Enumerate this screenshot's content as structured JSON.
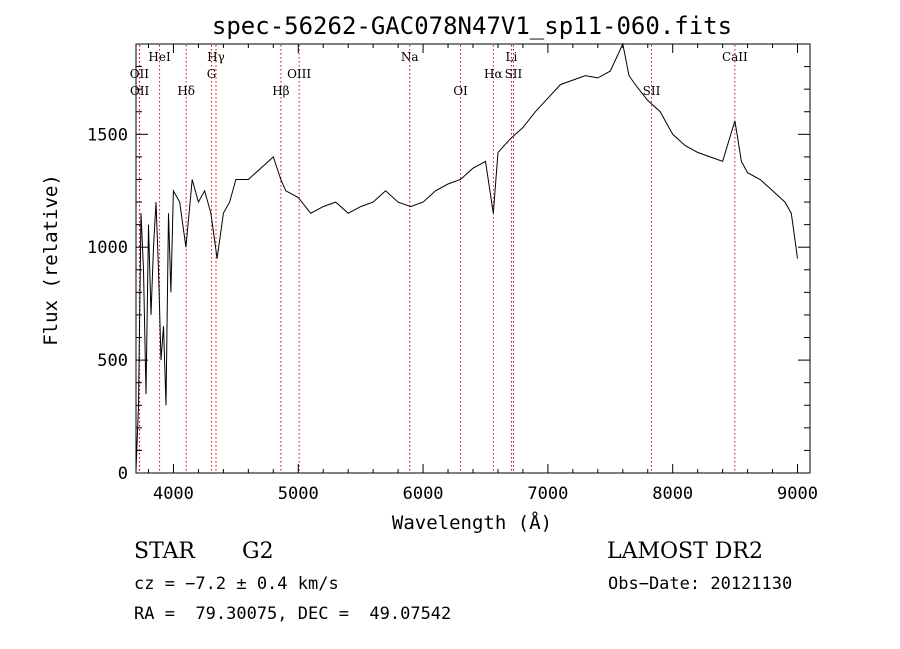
{
  "chart_data": {
    "type": "line",
    "title": "spec-56262-GAC078N47V1_sp11-060.fits",
    "xlabel": "Wavelength (Å)",
    "ylabel": "Flux (relative)",
    "xlim": [
      3700,
      9100
    ],
    "ylim": [
      0,
      1900
    ],
    "xticks": [
      4000,
      5000,
      6000,
      7000,
      8000,
      9000
    ],
    "yticks": [
      0,
      500,
      1000,
      1500
    ],
    "grid": false,
    "colors": {
      "line": "#000000",
      "markers": "#cc0000",
      "axes": "#000000"
    },
    "series": [
      {
        "x": [
          3700,
          3720,
          3740,
          3760,
          3780,
          3800,
          3820,
          3840,
          3860,
          3880,
          3900,
          3920,
          3940,
          3960,
          3980,
          4000,
          4050,
          4100,
          4150,
          4200,
          4250,
          4300,
          4350,
          4400,
          4450,
          4500,
          4600,
          4700,
          4800,
          4860,
          4900,
          5000,
          5100,
          5200,
          5300,
          5400,
          5500,
          5600,
          5700,
          5800,
          5900,
          6000,
          6100,
          6200,
          6300,
          6400,
          6500,
          6563,
          6600,
          6700,
          6800,
          6900,
          7000,
          7100,
          7200,
          7300,
          7400,
          7500,
          7600,
          7650,
          7700,
          7800,
          7900,
          8000,
          8100,
          8200,
          8300,
          8400,
          8498,
          8550,
          8600,
          8700,
          8800,
          8900,
          8950,
          9000
        ],
        "y": [
          10,
          300,
          1150,
          900,
          350,
          1100,
          700,
          1000,
          1200,
          900,
          500,
          650,
          300,
          1150,
          800,
          1250,
          1200,
          1000,
          1300,
          1200,
          1250,
          1150,
          950,
          1150,
          1200,
          1300,
          1300,
          1350,
          1400,
          1300,
          1250,
          1220,
          1150,
          1180,
          1200,
          1150,
          1180,
          1200,
          1250,
          1200,
          1180,
          1200,
          1250,
          1280,
          1300,
          1350,
          1380,
          1150,
          1420,
          1480,
          1530,
          1600,
          1660,
          1720,
          1740,
          1760,
          1750,
          1780,
          1900,
          1760,
          1720,
          1650,
          1600,
          1500,
          1450,
          1420,
          1400,
          1380,
          1560,
          1380,
          1330,
          1300,
          1250,
          1200,
          1150,
          950
        ]
      }
    ],
    "lines": [
      {
        "label": "OII",
        "x": 3727,
        "row": 2
      },
      {
        "label": "OII",
        "x": 3729,
        "row": 3
      },
      {
        "label": "HeI",
        "x": 3889,
        "row": 1
      },
      {
        "label": "Hδ",
        "x": 4102,
        "row": 3
      },
      {
        "label": "Hγ",
        "x": 4341,
        "row": 1
      },
      {
        "label": "G",
        "x": 4305,
        "row": 2
      },
      {
        "label": "Hβ",
        "x": 4861,
        "row": 3
      },
      {
        "label": "OIII",
        "x": 5007,
        "row": 2
      },
      {
        "label": "Na",
        "x": 5893,
        "row": 1
      },
      {
        "label": "OI",
        "x": 6300,
        "row": 3
      },
      {
        "label": "Hα",
        "x": 6563,
        "row": 2
      },
      {
        "label": "Li",
        "x": 6708,
        "row": 1
      },
      {
        "label": "SII",
        "x": 6724,
        "row": 2
      },
      {
        "label": "SII",
        "x": 7830,
        "row": 3
      },
      {
        "label": "CaII",
        "x": 8498,
        "row": 1
      }
    ]
  },
  "footer": {
    "class_label": "STAR",
    "subclass": "G2",
    "survey": "LAMOST DR2",
    "cz": "cz = −7.2 ± 0.4 km/s",
    "obs_date": "Obs−Date: 20121130",
    "radec": "RA =  79.30075, DEC =  49.07542"
  }
}
